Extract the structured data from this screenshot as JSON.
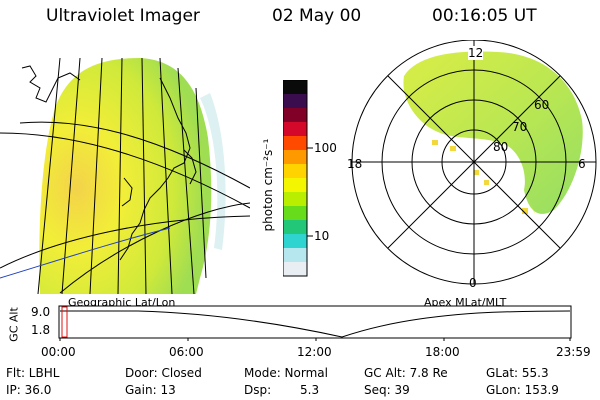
{
  "header": {
    "instrument": "Ultraviolet Imager",
    "date": "02 May 00",
    "time": "00:16:05 UT"
  },
  "colorbar": {
    "unit_label": "photon cm⁻²s⁻¹",
    "ticks": [
      "100",
      "10"
    ],
    "colors": [
      "#0a0a0a",
      "#3a0d4e",
      "#800028",
      "#d4082a",
      "#ff4a00",
      "#ff9900",
      "#ffd300",
      "#f3f600",
      "#b9ee00",
      "#66dc1a",
      "#22c878",
      "#2fd4d0",
      "#b7e7ee",
      "#e8eef2"
    ]
  },
  "panels": {
    "left_caption": "Geographic Lat/Lon",
    "right_caption": "Apex MLat/MLT",
    "polar_labels": {
      "top": "12",
      "left": "18",
      "right": "6",
      "bottom": "0",
      "lat_60": "60",
      "lat_70": "70",
      "lat_80": "80"
    }
  },
  "altitude_plot": {
    "ylabel": "GC Alt",
    "yticks": [
      "9.0",
      "1.8"
    ],
    "xticks": [
      "00:00",
      "06:00",
      "12:00",
      "18:00",
      "23:59"
    ]
  },
  "params": {
    "filter": "Flt: LBHL",
    "ip": "IP: 36.0",
    "door": "Door: Closed",
    "gain": "Gain: 13",
    "mode": "Mode: Normal",
    "dsp_label": "Dsp:",
    "dsp_value": "5.3",
    "gc_alt": "GC Alt: 7.8 Re",
    "seq": "Seq: 39",
    "glat": "GLat: 55.3",
    "glon": "GLon: 153.9"
  }
}
